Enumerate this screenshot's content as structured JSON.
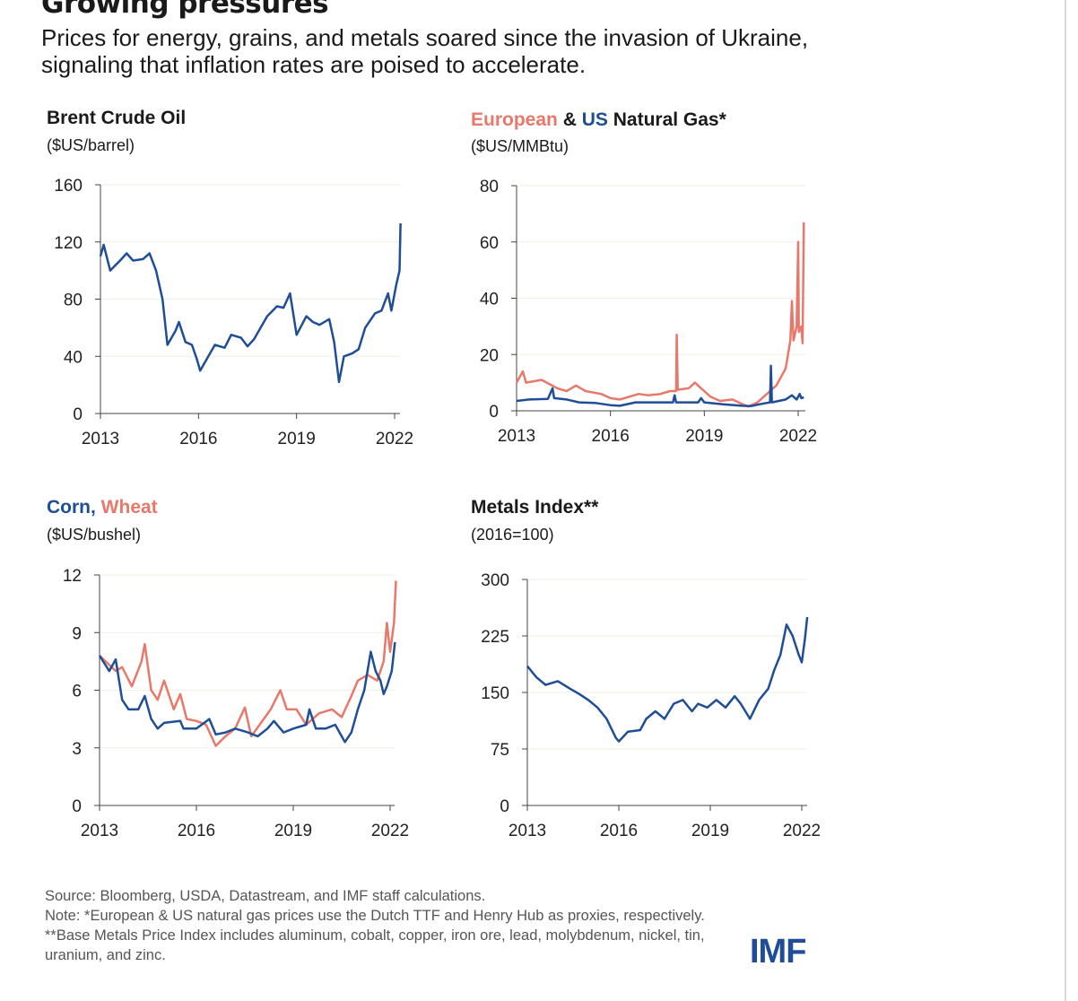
{
  "title": "Growing pressures",
  "subtitle": "Prices for energy, grains, and metals soared since the invasion of Ukraine, signaling that inflation rates are poised to accelerate.",
  "colors": {
    "blue": "#1f4e96",
    "salmon": "#e8786a"
  },
  "chart_data": [
    {
      "type": "line",
      "title": "Brent Crude Oil",
      "ylabel": "($US/barrel)",
      "ylim": [
        0,
        160
      ],
      "yticks": [
        "0",
        "40",
        "80",
        "120",
        "160"
      ],
      "xticks": [
        "2013",
        "2016",
        "2019",
        "2022"
      ],
      "grid": true,
      "series": [
        {
          "color": "#1f4e96",
          "x": [
            2013.0,
            2013.1,
            2013.3,
            2013.6,
            2013.8,
            2014.0,
            2014.3,
            2014.5,
            2014.7,
            2014.9,
            2015.05,
            2015.3,
            2015.4,
            2015.6,
            2015.8,
            2015.95,
            2016.05,
            2016.3,
            2016.5,
            2016.8,
            2017.0,
            2017.3,
            2017.5,
            2017.7,
            2017.9,
            2018.1,
            2018.4,
            2018.6,
            2018.8,
            2019.0,
            2019.3,
            2019.5,
            2019.7,
            2020.0,
            2020.15,
            2020.3,
            2020.45,
            2020.7,
            2020.9,
            2021.1,
            2021.4,
            2021.6,
            2021.8,
            2021.9,
            2022.05,
            2022.15,
            2022.18
          ],
          "values": [
            110,
            118,
            100,
            107,
            112,
            107,
            108,
            112,
            100,
            80,
            48,
            58,
            64,
            50,
            48,
            38,
            30,
            40,
            48,
            46,
            55,
            53,
            47,
            52,
            60,
            68,
            75,
            74,
            84,
            55,
            68,
            64,
            62,
            66,
            50,
            22,
            40,
            42,
            45,
            60,
            70,
            72,
            84,
            72,
            90,
            100,
            133
          ]
        }
      ]
    },
    {
      "type": "line",
      "title": "European & US Natural Gas*",
      "title_parts": [
        "European",
        " & ",
        "US",
        " Natural Gas*"
      ],
      "ylabel": "($US/MMBtu)",
      "ylim": [
        0,
        80
      ],
      "yticks": [
        "0",
        "20",
        "40",
        "60",
        "80"
      ],
      "xticks": [
        "2013",
        "2016",
        "2019",
        "2022"
      ],
      "grid": true,
      "series": [
        {
          "name": "European",
          "color": "#e8786a",
          "x": [
            2013.0,
            2013.2,
            2013.3,
            2013.8,
            2014.3,
            2014.6,
            2014.9,
            2015.2,
            2015.7,
            2016.0,
            2016.3,
            2016.6,
            2016.9,
            2017.2,
            2017.6,
            2017.9,
            2018.1,
            2018.12,
            2018.15,
            2018.5,
            2018.7,
            2018.9,
            2019.2,
            2019.5,
            2019.9,
            2020.2,
            2020.4,
            2020.7,
            2021.0,
            2021.3,
            2021.6,
            2021.75,
            2021.8,
            2021.85,
            2021.95,
            2022.0,
            2022.02,
            2022.1,
            2022.14,
            2022.18
          ],
          "values": [
            10,
            14,
            10,
            11,
            8,
            7,
            9,
            7,
            6,
            4.5,
            4,
            5,
            6,
            5.5,
            6,
            7,
            7,
            27,
            7.5,
            8,
            10,
            8,
            5,
            3.5,
            4,
            2.5,
            1.5,
            3,
            6,
            9,
            15,
            25,
            39,
            25,
            30,
            60,
            28,
            30,
            24,
            67
          ]
        },
        {
          "name": "US",
          "color": "#1f4e96",
          "x": [
            2013.0,
            2013.4,
            2014.0,
            2014.15,
            2014.2,
            2014.6,
            2015.0,
            2015.5,
            2016.0,
            2016.3,
            2016.8,
            2017.2,
            2017.8,
            2018.0,
            2018.05,
            2018.1,
            2018.8,
            2018.9,
            2019.0,
            2019.6,
            2020.2,
            2020.5,
            2020.9,
            2021.1,
            2021.13,
            2021.16,
            2021.6,
            2021.8,
            2021.95,
            2022.05,
            2022.1,
            2022.18
          ],
          "values": [
            3.5,
            4,
            4.2,
            8,
            4.5,
            4,
            3,
            2.8,
            2,
            1.8,
            3,
            3,
            3,
            3,
            5.5,
            3,
            3,
            4.5,
            3,
            2.3,
            1.8,
            1.7,
            2.6,
            3,
            16,
            3,
            4,
            5.5,
            4,
            6,
            4.5,
            4.8
          ]
        }
      ]
    },
    {
      "type": "line",
      "title": "Corn, Wheat",
      "title_parts": [
        "Corn",
        ", ",
        "Wheat"
      ],
      "ylabel": "($US/bushel)",
      "ylim": [
        0,
        12
      ],
      "yticks": [
        "0",
        "3",
        "6",
        "9",
        "12"
      ],
      "xticks": [
        "2013",
        "2016",
        "2019",
        "2022"
      ],
      "grid": true,
      "series": [
        {
          "name": "Wheat",
          "color": "#e8786a",
          "x": [
            2013.0,
            2013.5,
            2013.7,
            2014.0,
            2014.3,
            2014.4,
            2014.6,
            2014.8,
            2015.0,
            2015.3,
            2015.5,
            2015.7,
            2016.0,
            2016.3,
            2016.6,
            2016.9,
            2017.2,
            2017.5,
            2017.7,
            2018.0,
            2018.3,
            2018.6,
            2018.8,
            2019.1,
            2019.4,
            2019.8,
            2020.2,
            2020.5,
            2020.8,
            2021.0,
            2021.3,
            2021.6,
            2021.8,
            2021.9,
            2022.0,
            2022.12,
            2022.18
          ],
          "values": [
            7.8,
            7.0,
            7.2,
            6.2,
            7.5,
            8.4,
            6,
            5.5,
            6.5,
            5,
            5.8,
            4.5,
            4.4,
            4.2,
            3.1,
            3.6,
            4.0,
            5.1,
            3.6,
            4.3,
            5.0,
            6.0,
            5.0,
            5.0,
            4.2,
            4.8,
            5.0,
            4.6,
            5.7,
            6.5,
            6.8,
            6.5,
            7.5,
            9.5,
            8.0,
            9.5,
            11.7
          ]
        },
        {
          "name": "Corn",
          "color": "#1f4e96",
          "x": [
            2013.0,
            2013.3,
            2013.5,
            2013.7,
            2013.9,
            2014.2,
            2014.4,
            2014.6,
            2014.8,
            2015.0,
            2015.5,
            2015.6,
            2016.0,
            2016.4,
            2016.6,
            2016.9,
            2017.2,
            2017.6,
            2017.9,
            2018.2,
            2018.4,
            2018.7,
            2019.0,
            2019.4,
            2019.5,
            2019.7,
            2020.0,
            2020.3,
            2020.6,
            2020.8,
            2021.0,
            2021.2,
            2021.4,
            2021.55,
            2021.7,
            2021.8,
            2021.9,
            2022.05,
            2022.15
          ],
          "values": [
            7.8,
            7,
            7.6,
            5.5,
            5,
            5,
            5.7,
            4.5,
            4,
            4.3,
            4.4,
            4,
            4.0,
            4.5,
            3.7,
            3.8,
            4.0,
            3.8,
            3.6,
            4.0,
            4.4,
            3.8,
            4.0,
            4.2,
            5.0,
            4.0,
            4.0,
            4.2,
            3.3,
            3.8,
            5.0,
            6.0,
            8.0,
            7.0,
            6.5,
            5.8,
            6.2,
            7,
            8.5
          ]
        }
      ]
    },
    {
      "type": "line",
      "title": "Metals Index**",
      "ylabel": "(2016=100)",
      "ylim": [
        0,
        300
      ],
      "yticks": [
        "0",
        "75",
        "150",
        "225",
        "300"
      ],
      "xticks": [
        "2013",
        "2016",
        "2019",
        "2022"
      ],
      "grid": true,
      "series": [
        {
          "color": "#1f4e96",
          "x": [
            2013.0,
            2013.3,
            2013.6,
            2014.0,
            2014.4,
            2014.7,
            2015.0,
            2015.3,
            2015.6,
            2015.9,
            2016.0,
            2016.3,
            2016.7,
            2016.9,
            2017.2,
            2017.5,
            2017.8,
            2018.1,
            2018.4,
            2018.6,
            2018.9,
            2019.2,
            2019.5,
            2019.8,
            2020.0,
            2020.3,
            2020.6,
            2020.9,
            2021.1,
            2021.3,
            2021.5,
            2021.7,
            2021.9,
            2022.0,
            2022.1,
            2022.18
          ],
          "values": [
            185,
            170,
            160,
            165,
            155,
            148,
            140,
            130,
            115,
            90,
            85,
            98,
            100,
            115,
            125,
            115,
            135,
            140,
            125,
            135,
            130,
            140,
            130,
            145,
            135,
            115,
            140,
            155,
            180,
            200,
            240,
            225,
            200,
            190,
            220,
            250
          ]
        }
      ]
    }
  ],
  "footer": {
    "source": "Source: Bloomberg, USDA, Datastream, and IMF staff calculations.",
    "note": "Note: *European & US natural gas prices use the Dutch TTF and Henry Hub as proxies, respectively. **Base Metals Price Index includes aluminum, cobalt, copper, iron ore, lead, molybdenum, nickel, tin, uranium, and zinc."
  },
  "logo": "IMF"
}
